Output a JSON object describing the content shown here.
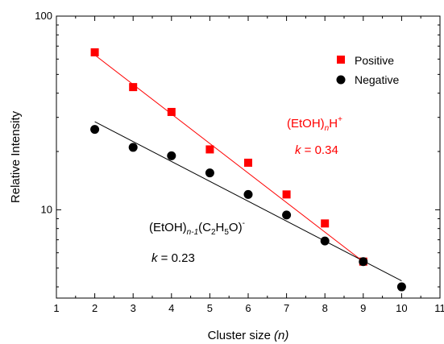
{
  "chart_data": {
    "type": "scatter",
    "xlabel": "Cluster size",
    "xlabel_italic": "(n)",
    "ylabel": "Relative Intensity",
    "xlim": [
      1,
      11
    ],
    "ylim": [
      3.5,
      100
    ],
    "yscale": "log",
    "grid": false,
    "legend_position": "top-right",
    "x_ticks": [
      1,
      2,
      3,
      4,
      5,
      6,
      7,
      8,
      9,
      10,
      11
    ],
    "x_tick_labels": [
      "1",
      "2",
      "3",
      "4",
      "5",
      "6",
      "7",
      "8",
      "9",
      "10",
      "11"
    ],
    "y_ticks": [
      10,
      100
    ],
    "y_tick_labels": [
      "10",
      "100"
    ],
    "series": [
      {
        "name": "Positive",
        "marker": "square",
        "color": "#ff0000",
        "x": [
          2,
          3,
          4,
          5,
          6,
          7,
          8,
          9
        ],
        "y": [
          65,
          43,
          32,
          20.5,
          17.5,
          12,
          8.5,
          5.4
        ],
        "fit": {
          "x": [
            2,
            9
          ],
          "y": [
            63,
            5.4
          ]
        }
      },
      {
        "name": "Negative",
        "marker": "circle",
        "color": "#000000",
        "x": [
          2,
          3,
          4,
          5,
          6,
          7,
          8,
          9,
          10
        ],
        "y": [
          26,
          21,
          19,
          15.5,
          12,
          9.4,
          6.9,
          5.4,
          4
        ],
        "fit": {
          "x": [
            2,
            10
          ],
          "y": [
            28.5,
            4.3
          ]
        }
      }
    ],
    "annotations": [
      {
        "series": "Positive",
        "color": "#ff0000",
        "formula": {
          "base": "(EtOH)",
          "sub": "n",
          "tail": "H",
          "sup": "+"
        },
        "k_label": "k",
        "k_value": " = 0.34"
      },
      {
        "series": "Negative",
        "color": "#000000",
        "formula": {
          "base": "(EtOH)",
          "sub1": "n-1",
          "mid": "(C",
          "sub2": "2",
          "mid2": "H",
          "sub3": "5",
          "tail": "O)",
          "sup": "-"
        },
        "k_label": "k",
        "k_value": " = 0.23"
      }
    ]
  }
}
